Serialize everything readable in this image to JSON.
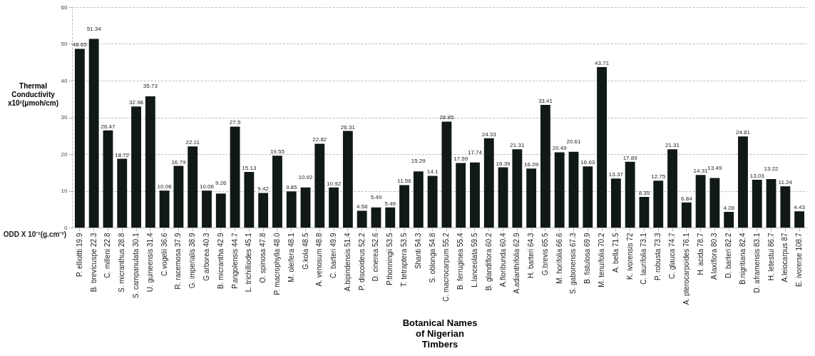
{
  "chart_data": {
    "type": "bar",
    "ylabel": "Thermal Conductivity x10²(μmoh/cm)",
    "xlabel": "Botanical Names of Nigerian Timbers",
    "annotations": [
      "ODD X 10⁻²(g.cm⁻³)"
    ],
    "categories": [
      "P. elliottti 19.9",
      "B. brevicuspe 22.3",
      "C. milleni 22.8",
      "S. micranthus 28.8",
      "S. campanulata 30.1",
      "U. guineensis 31.4",
      "C.vogelii 36.6",
      "R. racemosa 37.9",
      "G. imperialis 38.9",
      "G arborea 40.3",
      "B. micrantha 42.9",
      "P.angolensis 44.7",
      "L. trichilliodes 45.1",
      "O. spinosa 47.8",
      "P. macrophylla 48.0",
      "M. oleifera 48.1",
      "G.kola 48.5",
      "A. venosum 48.8",
      "C. barteri 49.9",
      "A.bipindensis 51.4",
      "P. discoideus 52.2",
      "D. cinerea 52.6",
      "P.thonningii 53.5",
      "T. tetraptera 53.5",
      "Shanti 54.3",
      "S. oblonga 54.8",
      "C. macrocarpum 55.2",
      "B. ferruginea 55.4",
      "L.lanceolata 59.5",
      "B. glandiflora 60.2",
      "A.floribunda 60.4",
      "A.adianthifolia 62.9",
      "H. barteri 64.3",
      "G.brevis 65.5",
      "M. horifolia 66.6",
      "S. gabonensis 67.3",
      "B. fistulosa 69.9",
      "M. tenuifolia 70.2",
      "A. bella 71.5",
      "K. ivorensis 72",
      "C. laurifolia 73.1",
      "P. robusta 73.3",
      "C. glauca 74.7",
      "A. pterocarpoides 76.1",
      "H. acida 78.7",
      "A laxiflora 80.3",
      "D. barteri 82.2",
      "B.nigritiana 82.4",
      "D. aframensis 83.1",
      "H. letestui 86.7",
      "A.leiocarpus 87",
      "E. ivorerse 108.7"
    ],
    "values": [
      48.65,
      51.34,
      26.47,
      18.72,
      32.98,
      35.73,
      10.06,
      16.79,
      22.11,
      10.06,
      9.26,
      27.5,
      15.13,
      9.42,
      19.55,
      9.85,
      10.92,
      22.82,
      10.92,
      26.31,
      4.58,
      5.49,
      5.49,
      11.56,
      15.29,
      14.1,
      28.85,
      17.59,
      17.74,
      24.33,
      16.39,
      21.31,
      16.09,
      33.41,
      20.49,
      20.61,
      16.63,
      43.71,
      13.37,
      17.89,
      8.35,
      12.75,
      21.31,
      6.84,
      14.31,
      13.49,
      4.28,
      24.81,
      13.03,
      13.22,
      11.24,
      4.43
    ],
    "color": "#111818",
    "ylim": [
      0,
      60
    ],
    "yticks": [
      0,
      10,
      20,
      30,
      40,
      50,
      60
    ],
    "grid": "y",
    "data_labels": true
  }
}
